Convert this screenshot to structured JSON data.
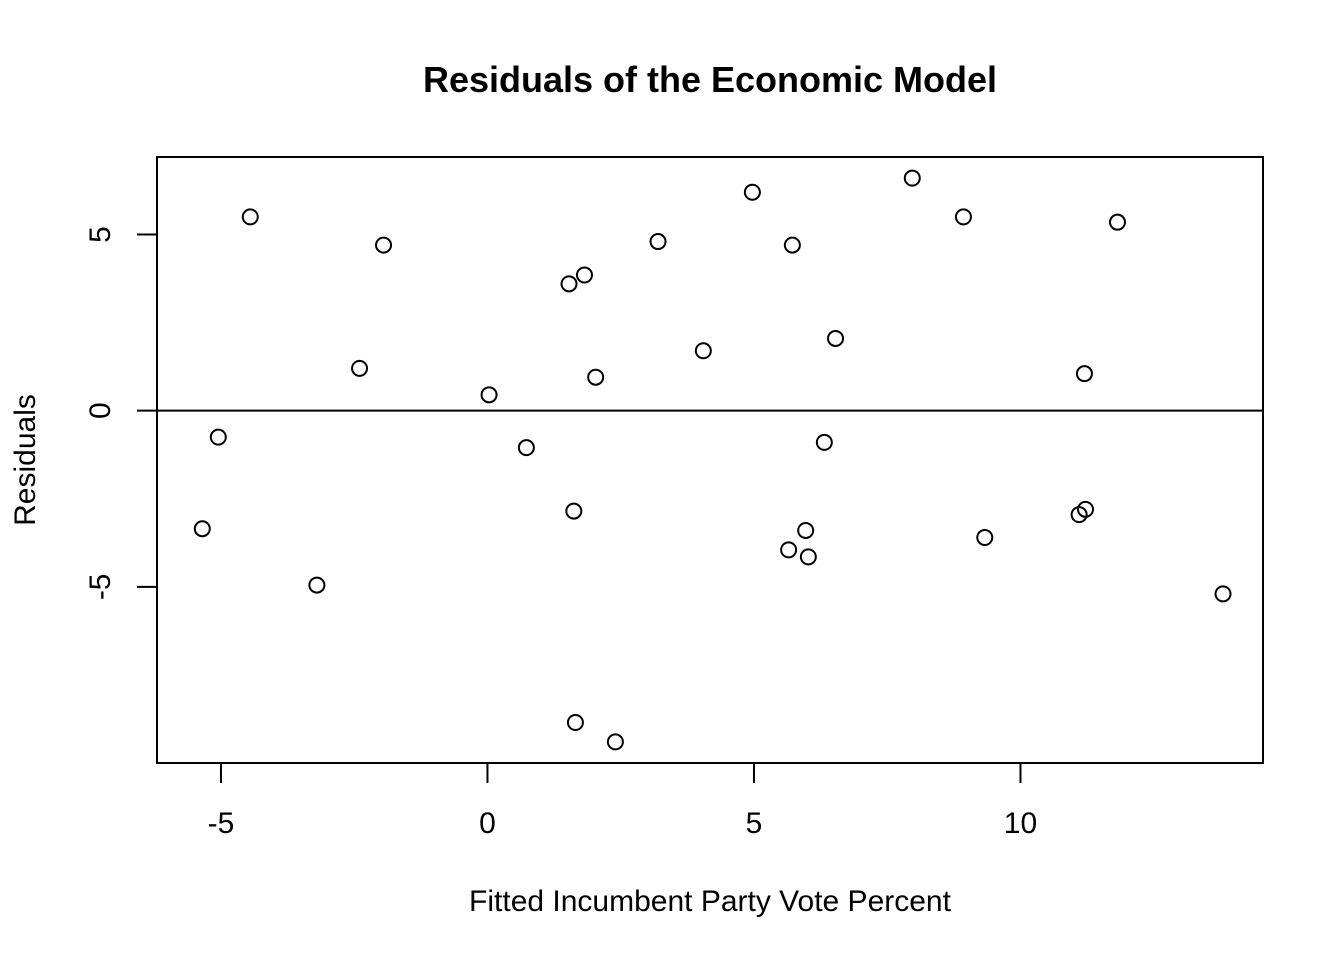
{
  "chart_data": {
    "type": "scatter",
    "title": "Residuals of the Economic Model",
    "xlabel": "Fitted Incumbent Party Vote Percent",
    "ylabel": "Residuals",
    "xlim": [
      -6.2,
      14.55
    ],
    "ylim": [
      -10.0,
      7.2
    ],
    "x_ticks": [
      -5,
      0,
      5,
      10
    ],
    "x_tick_labels": [
      "-5",
      "0",
      "5",
      "10"
    ],
    "y_ticks": [
      -5,
      0,
      5
    ],
    "y_tick_labels": [
      "-5",
      "0",
      "5"
    ],
    "reference_line_y": 0,
    "grid": false,
    "point_style": "open-circle",
    "x": [
      -5.35,
      -5.05,
      -4.45,
      -3.2,
      -2.4,
      -1.95,
      0.03,
      0.73,
      1.53,
      1.62,
      1.65,
      1.82,
      2.03,
      2.4,
      3.2,
      4.05,
      4.97,
      5.65,
      5.72,
      5.97,
      6.02,
      6.32,
      6.53,
      7.97,
      8.93,
      9.33,
      11.1,
      11.2,
      11.22,
      11.82,
      13.8
    ],
    "y": [
      -3.35,
      -0.75,
      5.5,
      -4.95,
      1.2,
      4.7,
      0.45,
      -1.05,
      3.6,
      -2.85,
      -8.85,
      3.85,
      0.95,
      -9.4,
      4.8,
      1.7,
      6.2,
      -3.95,
      4.7,
      -3.4,
      -4.15,
      -0.9,
      2.05,
      6.6,
      5.5,
      -3.6,
      -2.95,
      1.05,
      -2.8,
      5.35,
      -5.2
    ]
  }
}
